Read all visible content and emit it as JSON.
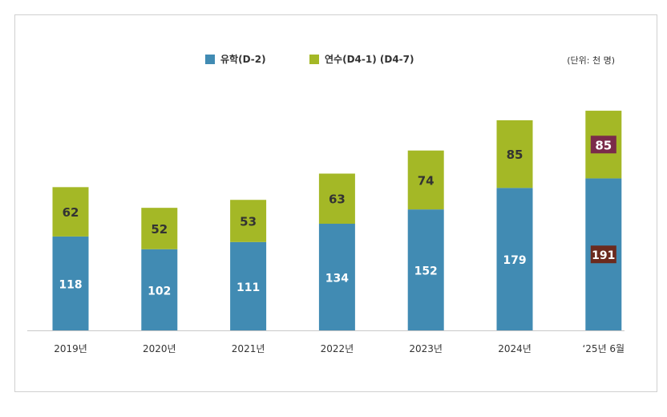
{
  "chart_data": {
    "type": "bar",
    "stacked": true,
    "unit_note": "(단위: 천 명)",
    "categories": [
      "2019년",
      "2020년",
      "2021년",
      "2022년",
      "2023년",
      "2024년",
      "‘25년 6월"
    ],
    "series": [
      {
        "name": "유학(D-2)",
        "color": "#418bb3",
        "values": [
          118,
          102,
          111,
          134,
          152,
          179,
          191
        ]
      },
      {
        "name": "연수(D4-1) (D4-7)",
        "color": "#a4b826",
        "values": [
          62,
          52,
          53,
          63,
          74,
          85,
          85
        ]
      }
    ],
    "highlight": {
      "index": 6,
      "label_colors": [
        "#6b2a1e",
        "#7a2b4a"
      ]
    },
    "ylim": [
      0,
      300
    ],
    "grid": false,
    "legend": "top-center"
  }
}
